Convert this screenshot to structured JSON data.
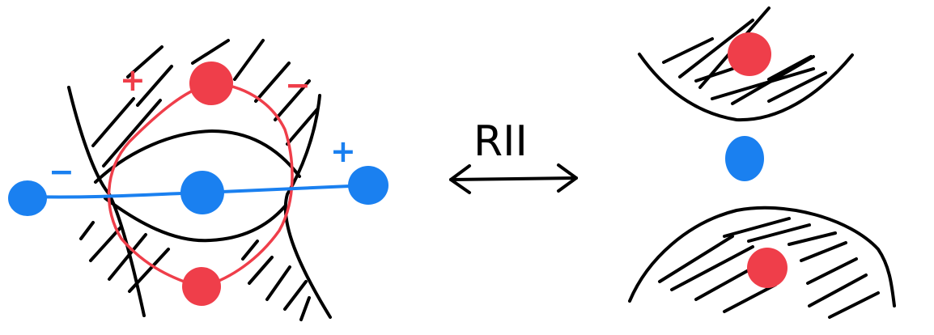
{
  "diagram": {
    "move_label": "RII",
    "signs": {
      "red_plus": "+",
      "red_minus": "−",
      "blue_minus": "−",
      "blue_plus": "+"
    },
    "colors": {
      "ink": "#000000",
      "red": "#ef3e4a",
      "blue": "#1a80f0",
      "background": "#ffffff"
    },
    "arrow": "double-headed"
  }
}
